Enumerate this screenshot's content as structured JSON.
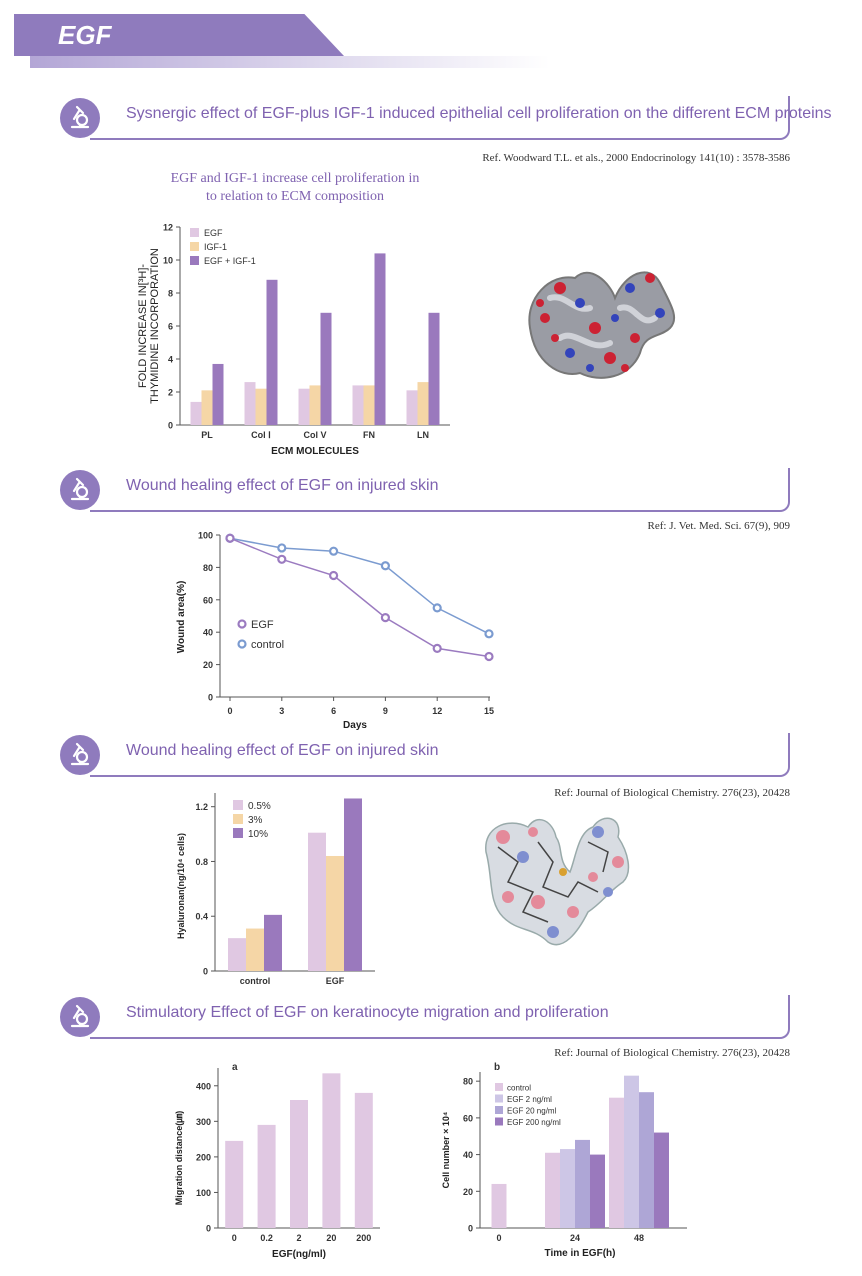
{
  "header": {
    "title": "EGF"
  },
  "sections": [
    {
      "title": "Sysnergic effect of EGF-plus IGF-1 induced epithelial cell proliferation on the different ECM proteins",
      "ref": "Ref. Woodward T.L. et als., 2000 Endocrinology 141(10) : 3578-3586"
    },
    {
      "title": "Wound healing effect of EGF on injured skin",
      "ref": "Ref: J. Vet. Med. Sci. 67(9), 909"
    },
    {
      "title": "Wound healing effect of EGF on injured skin",
      "ref": "Ref: Journal of Biological Chemistry. 276(23), 20428"
    },
    {
      "title": "Stimulatory Effect of EGF on keratinocyte migration and proliferation",
      "ref": "Ref: Journal of Biological Chemistry. 276(23), 20428"
    }
  ],
  "colors": {
    "accent": "#8f7bbd",
    "egf": "#9b7bc0",
    "control": "#7b9bd0"
  },
  "chart_data": [
    {
      "type": "bar",
      "title_line1": "EGF and IGF-1 increase cell proliferation in",
      "title_line2": "to relation to ECM composition",
      "xlabel": "ECM MOLECULES",
      "ylabel_line1": "FOLD INCREASE IN[³H]-",
      "ylabel_line2": "THYMIDINE INCORPORATION",
      "categories": [
        "PL",
        "Col Ⅰ",
        "Col V",
        "FN",
        "LN"
      ],
      "ylim": [
        0,
        12
      ],
      "yticks": [
        "0",
        "2",
        "4",
        "6",
        "8",
        "10",
        "12"
      ],
      "legend": "top-left",
      "series": [
        {
          "name": "EGF",
          "values": [
            1.4,
            2.6,
            2.2,
            2.4,
            2.1
          ],
          "color": "#e0c8e2"
        },
        {
          "name": "IGF-1",
          "values": [
            2.1,
            2.2,
            2.4,
            2.4,
            2.6
          ],
          "color": "#f5d6a6"
        },
        {
          "name": "EGF + IGF-1",
          "values": [
            3.7,
            8.8,
            6.8,
            10.4,
            6.8
          ],
          "color": "#9a79bd"
        }
      ]
    },
    {
      "type": "line",
      "xlabel": "Days",
      "ylabel": "Wound area(%)",
      "x": [
        0,
        3,
        6,
        9,
        12,
        15
      ],
      "xticks": [
        "0",
        "3",
        "6",
        "9",
        "12",
        "15"
      ],
      "ylim": [
        0,
        100
      ],
      "yticks": [
        "0",
        "20",
        "40",
        "60",
        "80",
        "100"
      ],
      "legend": "left",
      "series": [
        {
          "name": "EGF",
          "values": [
            98,
            85,
            75,
            49,
            30,
            25
          ],
          "color": "#9b7bc0"
        },
        {
          "name": "control",
          "values": [
            98,
            92,
            90,
            81,
            55,
            39
          ],
          "color": "#7b9bd0"
        }
      ]
    },
    {
      "type": "bar",
      "ylabel": "Hyaluronan(ng/10⁴ cells)",
      "categories": [
        "control",
        "EGF"
      ],
      "ylim": [
        0,
        1.3
      ],
      "yticks": [
        "0",
        "0.4",
        "0.8",
        "1.2"
      ],
      "legend": "top-left",
      "series": [
        {
          "name": "0.5%",
          "values": [
            0.24,
            1.01
          ],
          "color": "#e0c8e2"
        },
        {
          "name": "3%",
          "values": [
            0.31,
            0.84
          ],
          "color": "#f5d6a6"
        },
        {
          "name": "10%",
          "values": [
            0.41,
            1.26
          ],
          "color": "#9a79bd"
        }
      ]
    },
    {
      "type": "bar",
      "panel": "a",
      "xlabel": "EGF(ng/ml)",
      "ylabel": "Migration distance(㎛)",
      "categories": [
        "0",
        "0.2",
        "2",
        "20",
        "200"
      ],
      "ylim": [
        0,
        450
      ],
      "yticks": [
        "0",
        "100",
        "200",
        "300",
        "400"
      ],
      "series": [
        {
          "values": [
            245,
            290,
            360,
            435,
            380
          ],
          "color": "#e0c8e2"
        }
      ]
    },
    {
      "type": "bar",
      "panel": "b",
      "xlabel": "Time in EGF(h)",
      "ylabel": "Cell number × 10⁴",
      "categories": [
        "0",
        "24",
        "48"
      ],
      "ylim": [
        0,
        85
      ],
      "yticks": [
        "0",
        "20",
        "40",
        "60",
        "80"
      ],
      "legend": "top-left",
      "series": [
        {
          "name": "control",
          "values": [
            24,
            41,
            71
          ],
          "color": "#e0c8e2"
        },
        {
          "name": "EGF 2 ng/ml",
          "values": [
            null,
            43,
            83
          ],
          "color": "#cdc6e6"
        },
        {
          "name": "EGF 20 ng/ml",
          "values": [
            null,
            48,
            74
          ],
          "color": "#aea6d6"
        },
        {
          "name": "EGF 200 ng/ml",
          "values": [
            null,
            40,
            52
          ],
          "color": "#9a79bd"
        }
      ]
    }
  ]
}
